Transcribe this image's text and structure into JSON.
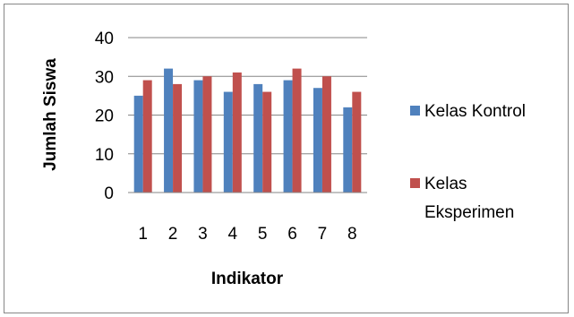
{
  "chart_data": {
    "type": "bar",
    "categories": [
      "1",
      "2",
      "3",
      "4",
      "5",
      "6",
      "7",
      "8"
    ],
    "series": [
      {
        "name": "Kelas Kontrol",
        "values": [
          25,
          32,
          29,
          26,
          28,
          29,
          27,
          22
        ]
      },
      {
        "name": "Kelas Eksperimen",
        "values": [
          29,
          28,
          30,
          31,
          26,
          32,
          30,
          26
        ]
      }
    ],
    "title": "",
    "xlabel": "Indikator",
    "ylabel": "Jumlah Siswa",
    "ylim": [
      0,
      40
    ],
    "yticks": [
      "0",
      "10",
      "20",
      "30",
      "40"
    ],
    "grid": true,
    "legend_position": "right",
    "legend_lines": [
      [
        "Kelas Kontrol"
      ],
      [
        "Kelas",
        "Eksperimen"
      ]
    ],
    "colors": [
      "#4f81bd",
      "#c0504d"
    ]
  }
}
